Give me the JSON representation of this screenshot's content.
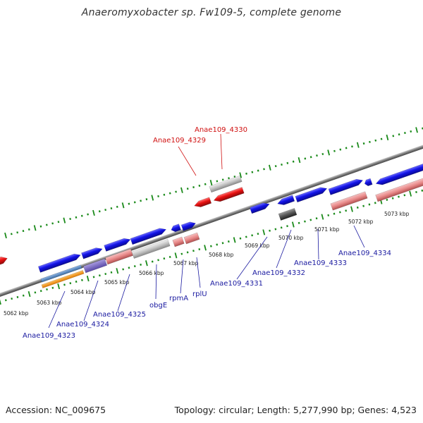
{
  "title": "Anaeromyxobacter sp. Fw109-5, complete genome",
  "footer": {
    "accession": "Accession: NC_009675",
    "stats": "Topology: circular; Length: 5,277,990 bp; Genes: 4,523"
  },
  "colors": {
    "backbone": "#7a7a7a",
    "tick": "#1a8a1a",
    "cds": "#1414e6",
    "cds_light": "#e98a8a",
    "red_feature": "#e81010",
    "gray_feature": "#bdbdbd",
    "dark_gray_feature": "#555555",
    "label_blue": "#1a1aa0",
    "label_red": "#d01010"
  },
  "kbp_labels": [
    "5062 kbp",
    "5063 kbp",
    "5064 kbp",
    "5065 kbp",
    "5066 kbp",
    "5067 kbp",
    "5068 kbp",
    "5069 kbp",
    "5070 kbp",
    "5071 kbp",
    "5072 kbp",
    "5073 kbp"
  ],
  "gene_labels_bottom": [
    "Anae109_4323",
    "Anae109_4324",
    "Anae109_4325",
    "obgE",
    "rpmA",
    "rplU",
    "Anae109_4331",
    "Anae109_4332",
    "Anae109_4333",
    "Anae109_4334"
  ],
  "gene_labels_top": [
    "Anae109_4329",
    "Anae109_4330"
  ]
}
